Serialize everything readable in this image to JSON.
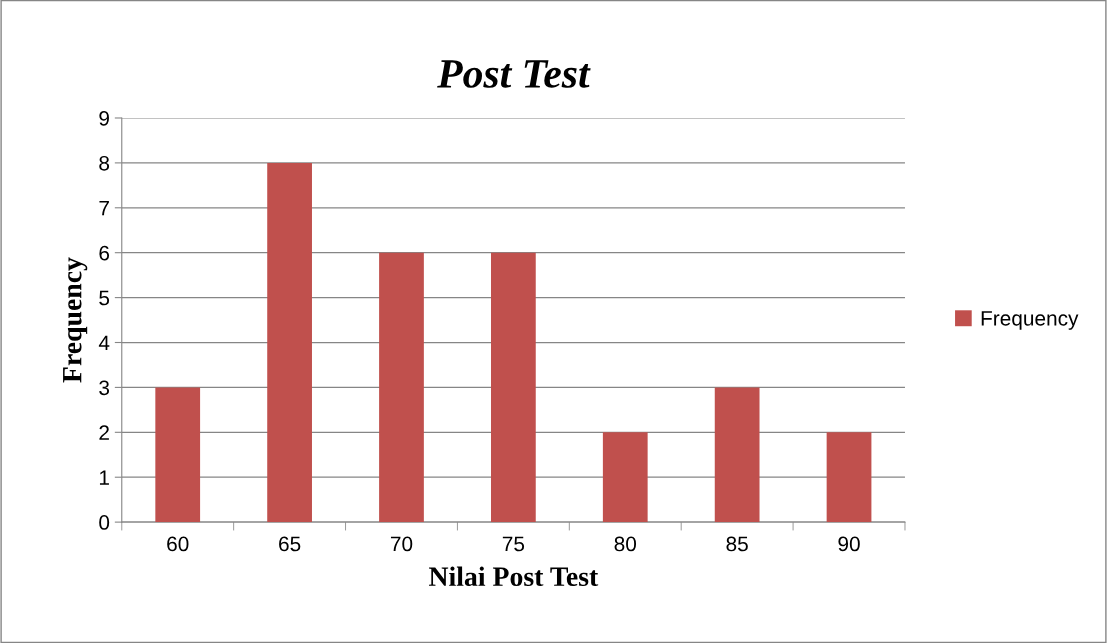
{
  "chart_data": {
    "type": "bar",
    "title": "Post Test",
    "xlabel": "Nilai Post Test",
    "ylabel": "Frequency",
    "categories": [
      "60",
      "65",
      "70",
      "75",
      "80",
      "85",
      "90"
    ],
    "series": [
      {
        "name": "Frequency",
        "color": "#c0504d",
        "values": [
          3,
          8,
          6,
          6,
          2,
          3,
          2
        ]
      }
    ],
    "ylim": [
      0,
      9
    ],
    "yticks": [
      0,
      1,
      2,
      3,
      4,
      5,
      6,
      7,
      8,
      9
    ],
    "grid": "y",
    "legend": "right"
  }
}
